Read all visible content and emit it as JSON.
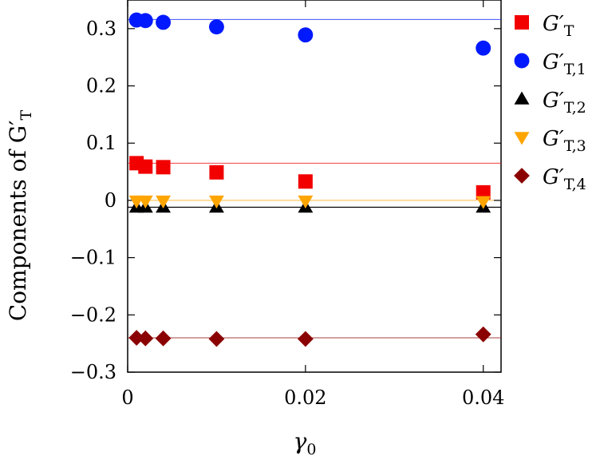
{
  "chart_data": {
    "type": "scatter",
    "xlabel_main": "γ",
    "xlabel_sub": "0",
    "ylabel": "Components of G′",
    "ylabel_sub": "T",
    "xlim": [
      0,
      0.042
    ],
    "ylim": [
      -0.3,
      0.35
    ],
    "x_ticks": [
      {
        "value": 0,
        "label": "0"
      },
      {
        "value": 0.02,
        "label": "0.02"
      },
      {
        "value": 0.04,
        "label": "0.04"
      }
    ],
    "y_ticks": [
      {
        "value": 0.3,
        "label": "0.3"
      },
      {
        "value": 0.2,
        "label": "0.2"
      },
      {
        "value": 0.1,
        "label": "0.1"
      },
      {
        "value": 0,
        "label": "0"
      },
      {
        "value": -0.1,
        "label": "−0.1"
      },
      {
        "value": -0.2,
        "label": "−0.2"
      },
      {
        "value": -0.3,
        "label": "−0.3"
      }
    ],
    "grid": false,
    "legend_position": "right",
    "series": [
      {
        "name": "G′",
        "name_sub": "T",
        "marker": "square",
        "color": "#f20000",
        "x": [
          0.001,
          0.002,
          0.004,
          0.01,
          0.02,
          0.04
        ],
        "y": [
          0.065,
          0.059,
          0.058,
          0.049,
          0.033,
          0.014
        ],
        "reference": 0.065
      },
      {
        "name": "G′",
        "name_sub": "T,1",
        "marker": "circle",
        "color": "#0019ff",
        "x": [
          0.001,
          0.002,
          0.004,
          0.01,
          0.02,
          0.04
        ],
        "y": [
          0.315,
          0.314,
          0.311,
          0.303,
          0.289,
          0.266
        ],
        "reference": 0.316
      },
      {
        "name": "G′",
        "name_sub": "T,2",
        "marker": "triangle-up",
        "color": "#000000",
        "x": [
          0.001,
          0.002,
          0.004,
          0.01,
          0.02,
          0.04
        ],
        "y": [
          -0.012,
          -0.012,
          -0.012,
          -0.012,
          -0.012,
          -0.012
        ],
        "reference": -0.012
      },
      {
        "name": "G′",
        "name_sub": "T,3",
        "marker": "triangle-down",
        "color": "#ffa500",
        "x": [
          0.001,
          0.002,
          0.004,
          0.01,
          0.02,
          0.04
        ],
        "y": [
          -0.001,
          -0.001,
          -0.001,
          -0.001,
          -0.001,
          -0.002
        ],
        "reference": 0.0
      },
      {
        "name": "G′",
        "name_sub": "T,4",
        "marker": "diamond",
        "color": "#8b0000",
        "x": [
          0.001,
          0.002,
          0.004,
          0.01,
          0.02,
          0.04
        ],
        "y": [
          -0.24,
          -0.241,
          -0.241,
          -0.242,
          -0.242,
          -0.234
        ],
        "reference": -0.24
      }
    ]
  }
}
